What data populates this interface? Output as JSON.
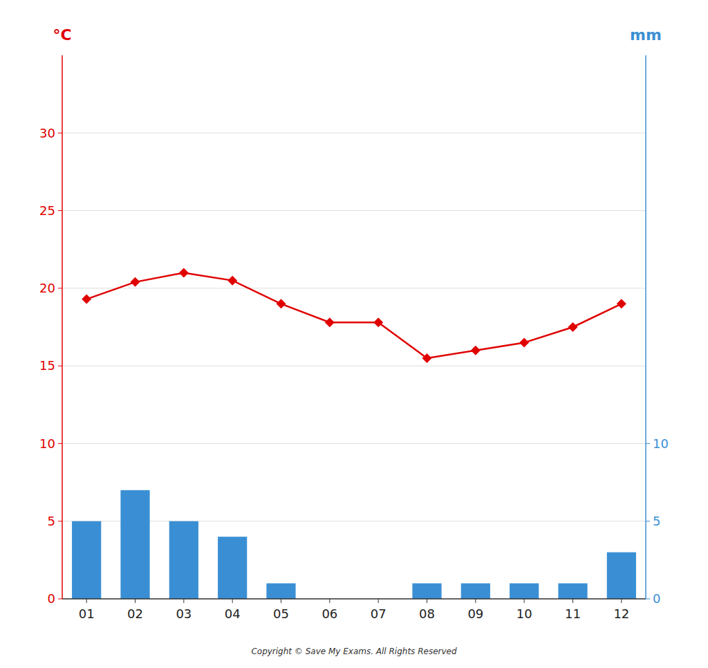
{
  "chart_data": {
    "type": "combo",
    "categories": [
      "01",
      "02",
      "03",
      "04",
      "05",
      "06",
      "07",
      "08",
      "09",
      "10",
      "11",
      "12"
    ],
    "series": [
      {
        "type": "bar",
        "axis": "y2",
        "color": "#3a8fd4",
        "values": [
          5,
          7,
          5,
          4,
          1,
          0,
          0,
          1,
          1,
          1,
          1,
          3
        ]
      },
      {
        "type": "line",
        "color": "#e00000",
        "marker": "diamond",
        "values": [
          19.3,
          20.4,
          21.0,
          20.5,
          19.0,
          17.8,
          17.8,
          15.5,
          16.0,
          16.5,
          17.5,
          19.0
        ]
      }
    ],
    "y_label": "°C",
    "y2_label": "mm",
    "ylim": [
      0,
      35
    ],
    "yticks": [
      0,
      5,
      10,
      15,
      20,
      25,
      30
    ],
    "y2lim": [
      0,
      35
    ],
    "y2ticks": [
      0,
      5,
      10
    ],
    "grid": true,
    "annotations": [
      "Copyright © Save My Exams. All Rights Reserved"
    ]
  }
}
